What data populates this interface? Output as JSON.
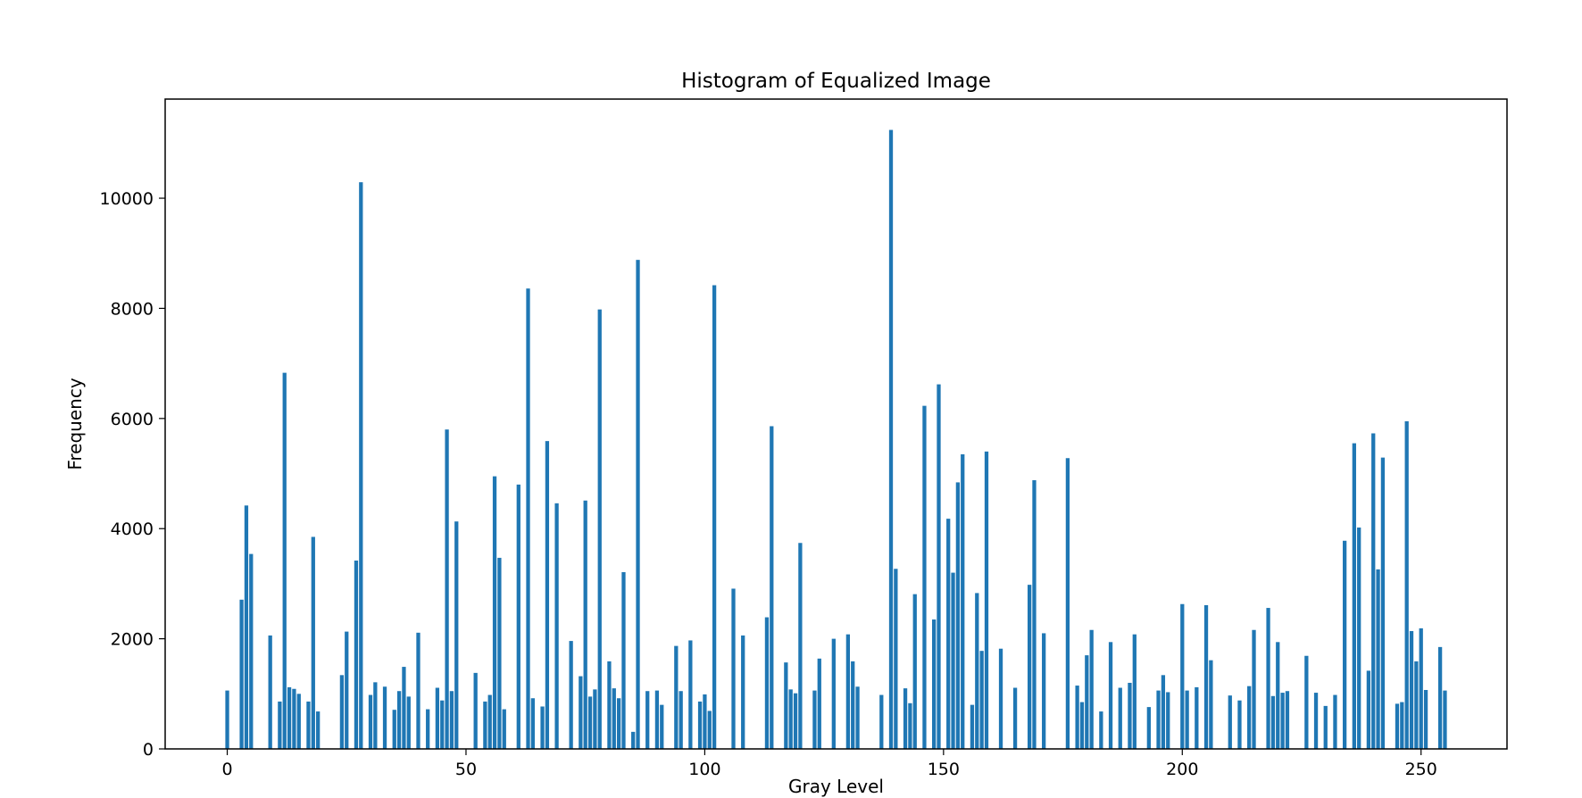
{
  "chart_data": {
    "type": "bar",
    "title": "Histogram of Equalized Image",
    "xlabel": "Gray Level",
    "ylabel": "Frequency",
    "xlim": [
      -13,
      268
    ],
    "ylim": [
      0,
      11800
    ],
    "xticks": [
      0,
      50,
      100,
      150,
      200,
      250
    ],
    "yticks": [
      0,
      2000,
      4000,
      6000,
      8000,
      10000
    ],
    "grid": false,
    "bar_color": "#1f77b4",
    "bars": [
      {
        "x": 0,
        "y": 1060
      },
      {
        "x": 3,
        "y": 2710
      },
      {
        "x": 4,
        "y": 4420
      },
      {
        "x": 5,
        "y": 3540
      },
      {
        "x": 9,
        "y": 2060
      },
      {
        "x": 11,
        "y": 860
      },
      {
        "x": 12,
        "y": 6830
      },
      {
        "x": 13,
        "y": 1120
      },
      {
        "x": 14,
        "y": 1090
      },
      {
        "x": 15,
        "y": 1000
      },
      {
        "x": 17,
        "y": 860
      },
      {
        "x": 18,
        "y": 3850
      },
      {
        "x": 19,
        "y": 680
      },
      {
        "x": 24,
        "y": 1340
      },
      {
        "x": 25,
        "y": 2130
      },
      {
        "x": 27,
        "y": 3420
      },
      {
        "x": 28,
        "y": 10290
      },
      {
        "x": 30,
        "y": 980
      },
      {
        "x": 31,
        "y": 1210
      },
      {
        "x": 33,
        "y": 1130
      },
      {
        "x": 35,
        "y": 710
      },
      {
        "x": 36,
        "y": 1050
      },
      {
        "x": 37,
        "y": 1490
      },
      {
        "x": 38,
        "y": 950
      },
      {
        "x": 40,
        "y": 2110
      },
      {
        "x": 42,
        "y": 720
      },
      {
        "x": 44,
        "y": 1110
      },
      {
        "x": 45,
        "y": 880
      },
      {
        "x": 46,
        "y": 5800
      },
      {
        "x": 47,
        "y": 1050
      },
      {
        "x": 48,
        "y": 4130
      },
      {
        "x": 52,
        "y": 1380
      },
      {
        "x": 54,
        "y": 860
      },
      {
        "x": 55,
        "y": 980
      },
      {
        "x": 56,
        "y": 4950
      },
      {
        "x": 57,
        "y": 3470
      },
      {
        "x": 58,
        "y": 720
      },
      {
        "x": 61,
        "y": 4800
      },
      {
        "x": 63,
        "y": 8360
      },
      {
        "x": 64,
        "y": 920
      },
      {
        "x": 66,
        "y": 770
      },
      {
        "x": 67,
        "y": 5590
      },
      {
        "x": 69,
        "y": 4460
      },
      {
        "x": 72,
        "y": 1960
      },
      {
        "x": 74,
        "y": 1320
      },
      {
        "x": 75,
        "y": 4510
      },
      {
        "x": 76,
        "y": 950
      },
      {
        "x": 77,
        "y": 1080
      },
      {
        "x": 78,
        "y": 7980
      },
      {
        "x": 80,
        "y": 1590
      },
      {
        "x": 81,
        "y": 1100
      },
      {
        "x": 82,
        "y": 920
      },
      {
        "x": 83,
        "y": 3210
      },
      {
        "x": 85,
        "y": 310
      },
      {
        "x": 86,
        "y": 8880
      },
      {
        "x": 88,
        "y": 1050
      },
      {
        "x": 90,
        "y": 1060
      },
      {
        "x": 91,
        "y": 800
      },
      {
        "x": 94,
        "y": 1870
      },
      {
        "x": 95,
        "y": 1050
      },
      {
        "x": 97,
        "y": 1970
      },
      {
        "x": 99,
        "y": 860
      },
      {
        "x": 100,
        "y": 990
      },
      {
        "x": 101,
        "y": 690
      },
      {
        "x": 102,
        "y": 8420
      },
      {
        "x": 106,
        "y": 2910
      },
      {
        "x": 108,
        "y": 2060
      },
      {
        "x": 113,
        "y": 2390
      },
      {
        "x": 114,
        "y": 5860
      },
      {
        "x": 117,
        "y": 1570
      },
      {
        "x": 118,
        "y": 1080
      },
      {
        "x": 119,
        "y": 1010
      },
      {
        "x": 120,
        "y": 3740
      },
      {
        "x": 123,
        "y": 1060
      },
      {
        "x": 124,
        "y": 1640
      },
      {
        "x": 127,
        "y": 2000
      },
      {
        "x": 130,
        "y": 2080
      },
      {
        "x": 131,
        "y": 1590
      },
      {
        "x": 132,
        "y": 1130
      },
      {
        "x": 137,
        "y": 980
      },
      {
        "x": 139,
        "y": 11240
      },
      {
        "x": 140,
        "y": 3270
      },
      {
        "x": 142,
        "y": 1100
      },
      {
        "x": 143,
        "y": 830
      },
      {
        "x": 144,
        "y": 2810
      },
      {
        "x": 146,
        "y": 6230
      },
      {
        "x": 148,
        "y": 2350
      },
      {
        "x": 149,
        "y": 6620
      },
      {
        "x": 151,
        "y": 4180
      },
      {
        "x": 152,
        "y": 3200
      },
      {
        "x": 153,
        "y": 4840
      },
      {
        "x": 154,
        "y": 5350
      },
      {
        "x": 156,
        "y": 800
      },
      {
        "x": 157,
        "y": 2830
      },
      {
        "x": 158,
        "y": 1780
      },
      {
        "x": 159,
        "y": 5400
      },
      {
        "x": 162,
        "y": 1820
      },
      {
        "x": 165,
        "y": 1110
      },
      {
        "x": 168,
        "y": 2980
      },
      {
        "x": 169,
        "y": 4880
      },
      {
        "x": 171,
        "y": 2100
      },
      {
        "x": 176,
        "y": 5280
      },
      {
        "x": 178,
        "y": 1150
      },
      {
        "x": 179,
        "y": 850
      },
      {
        "x": 180,
        "y": 1700
      },
      {
        "x": 181,
        "y": 2160
      },
      {
        "x": 183,
        "y": 680
      },
      {
        "x": 185,
        "y": 1940
      },
      {
        "x": 187,
        "y": 1110
      },
      {
        "x": 189,
        "y": 1200
      },
      {
        "x": 190,
        "y": 2080
      },
      {
        "x": 193,
        "y": 760
      },
      {
        "x": 195,
        "y": 1060
      },
      {
        "x": 196,
        "y": 1340
      },
      {
        "x": 197,
        "y": 1030
      },
      {
        "x": 200,
        "y": 2630
      },
      {
        "x": 201,
        "y": 1060
      },
      {
        "x": 203,
        "y": 1120
      },
      {
        "x": 205,
        "y": 2610
      },
      {
        "x": 206,
        "y": 1610
      },
      {
        "x": 210,
        "y": 970
      },
      {
        "x": 212,
        "y": 880
      },
      {
        "x": 214,
        "y": 1140
      },
      {
        "x": 215,
        "y": 2160
      },
      {
        "x": 218,
        "y": 2560
      },
      {
        "x": 219,
        "y": 960
      },
      {
        "x": 220,
        "y": 1940
      },
      {
        "x": 221,
        "y": 1020
      },
      {
        "x": 222,
        "y": 1050
      },
      {
        "x": 226,
        "y": 1690
      },
      {
        "x": 228,
        "y": 1020
      },
      {
        "x": 230,
        "y": 780
      },
      {
        "x": 232,
        "y": 980
      },
      {
        "x": 234,
        "y": 3780
      },
      {
        "x": 236,
        "y": 5550
      },
      {
        "x": 237,
        "y": 4020
      },
      {
        "x": 239,
        "y": 1420
      },
      {
        "x": 240,
        "y": 5730
      },
      {
        "x": 241,
        "y": 3260
      },
      {
        "x": 242,
        "y": 5290
      },
      {
        "x": 245,
        "y": 820
      },
      {
        "x": 246,
        "y": 850
      },
      {
        "x": 247,
        "y": 5950
      },
      {
        "x": 248,
        "y": 2140
      },
      {
        "x": 249,
        "y": 1590
      },
      {
        "x": 250,
        "y": 2190
      },
      {
        "x": 251,
        "y": 1070
      },
      {
        "x": 254,
        "y": 1850
      },
      {
        "x": 255,
        "y": 1060
      }
    ]
  }
}
